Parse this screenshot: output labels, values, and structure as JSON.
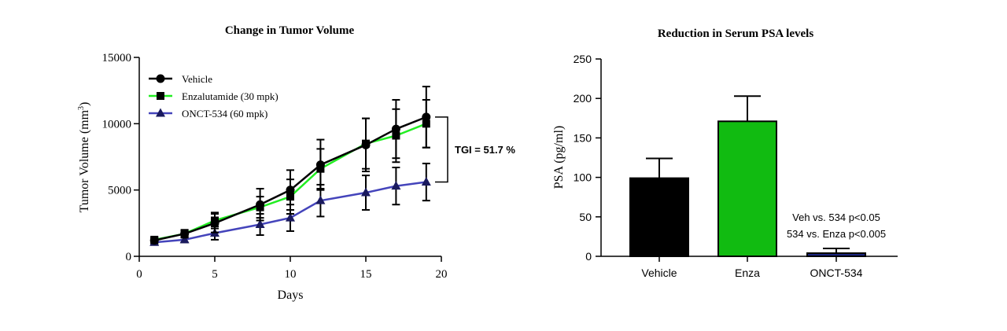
{
  "chart_data": [
    {
      "type": "line",
      "title": "Change in Tumor  Volume",
      "xlabel": "Days",
      "ylabel": "Tumor Volume (mm",
      "ylabel_sup": "3",
      "ylabel_close": ")",
      "xlim": [
        0,
        20
      ],
      "ylim": [
        0,
        15000
      ],
      "xticks": [
        0,
        5,
        10,
        15,
        20
      ],
      "yticks": [
        0,
        5000,
        10000,
        15000
      ],
      "grid": false,
      "legend_position": "top-left",
      "x": [
        1,
        3,
        5,
        8,
        10,
        12,
        15,
        17,
        19
      ],
      "series": [
        {
          "name": "Vehicle",
          "color": "#000000",
          "marker": "circle",
          "values": [
            1200,
            1700,
            2500,
            3900,
            5000,
            6900,
            8400,
            9600,
            10500
          ],
          "errors": [
            200,
            300,
            700,
            1200,
            1500,
            1900,
            2000,
            2200,
            2300
          ]
        },
        {
          "name": "Enzalutamide (30 mpk)",
          "color": "#22ee22",
          "marker": "square",
          "values": [
            1250,
            1700,
            2700,
            3700,
            4500,
            6600,
            8500,
            9100,
            10000
          ],
          "errors": [
            150,
            250,
            600,
            800,
            1300,
            1500,
            1900,
            2000,
            1800
          ]
        },
        {
          "name": "ONCT-534 (60 mpk)",
          "color": "#4444bb",
          "marker": "triangle",
          "values": [
            1050,
            1250,
            1750,
            2400,
            2900,
            4200,
            4800,
            5300,
            5600
          ],
          "errors": [
            150,
            200,
            500,
            800,
            1000,
            1200,
            1300,
            1400,
            1400
          ]
        }
      ],
      "annotation": {
        "text": "TGI = 51.7 %",
        "bracket_from": 10500,
        "bracket_to": 5600
      }
    },
    {
      "type": "bar",
      "title": "Reduction in Serum PSA levels",
      "xlabel": "",
      "ylabel": "PSA (pg/ml)",
      "ylim": [
        0,
        250
      ],
      "yticks": [
        0,
        50,
        100,
        150,
        200,
        250
      ],
      "grid": false,
      "categories": [
        "Vehicle",
        "Enza",
        "ONCT-534"
      ],
      "values": [
        99,
        171,
        4
      ],
      "errors": [
        25,
        32,
        6
      ],
      "colors": [
        "#000000",
        "#11bb11",
        "#1a237e"
      ],
      "annotations": [
        "Veh vs. 534 p<0.05",
        "534 vs. Enza p<0.005"
      ]
    }
  ]
}
